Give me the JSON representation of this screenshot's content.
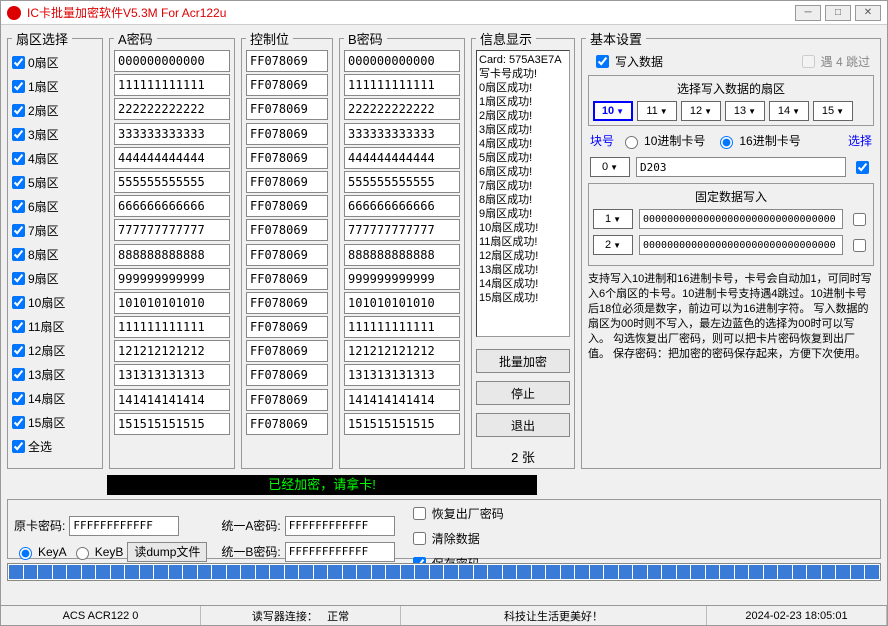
{
  "window": {
    "title": "IC卡批量加密软件V5.3M For Acr122u"
  },
  "headers": {
    "sector": "扇区选择",
    "akey": "A密码",
    "ctrl": "控制位",
    "bkey": "B密码",
    "info": "信息显示",
    "settings": "基本设置"
  },
  "sectors": [
    {
      "label": "0扇区",
      "a": "000000000000",
      "c": "FF078069",
      "b": "000000000000"
    },
    {
      "label": "1扇区",
      "a": "111111111111",
      "c": "FF078069",
      "b": "111111111111"
    },
    {
      "label": "2扇区",
      "a": "222222222222",
      "c": "FF078069",
      "b": "222222222222"
    },
    {
      "label": "3扇区",
      "a": "333333333333",
      "c": "FF078069",
      "b": "333333333333"
    },
    {
      "label": "4扇区",
      "a": "444444444444",
      "c": "FF078069",
      "b": "444444444444"
    },
    {
      "label": "5扇区",
      "a": "555555555555",
      "c": "FF078069",
      "b": "555555555555"
    },
    {
      "label": "6扇区",
      "a": "666666666666",
      "c": "FF078069",
      "b": "666666666666"
    },
    {
      "label": "7扇区",
      "a": "777777777777",
      "c": "FF078069",
      "b": "777777777777"
    },
    {
      "label": "8扇区",
      "a": "888888888888",
      "c": "FF078069",
      "b": "888888888888"
    },
    {
      "label": "9扇区",
      "a": "999999999999",
      "c": "FF078069",
      "b": "999999999999"
    },
    {
      "label": "10扇区",
      "a": "101010101010",
      "c": "FF078069",
      "b": "101010101010"
    },
    {
      "label": "11扇区",
      "a": "111111111111",
      "c": "FF078069",
      "b": "111111111111"
    },
    {
      "label": "12扇区",
      "a": "121212121212",
      "c": "FF078069",
      "b": "121212121212"
    },
    {
      "label": "13扇区",
      "a": "131313131313",
      "c": "FF078069",
      "b": "131313131313"
    },
    {
      "label": "14扇区",
      "a": "141414141414",
      "c": "FF078069",
      "b": "141414141414"
    },
    {
      "label": "15扇区",
      "a": "151515151515",
      "c": "FF078069",
      "b": "151515151515"
    }
  ],
  "select_all": "全选",
  "info_lines": [
    "Card: 575A3E7A",
    "写卡号成功!",
    "0扇区成功!",
    "1扇区成功!",
    "2扇区成功!",
    "3扇区成功!",
    "4扇区成功!",
    "5扇区成功!",
    "6扇区成功!",
    "7扇区成功!",
    "8扇区成功!",
    "9扇区成功!",
    "10扇区成功!",
    "11扇区成功!",
    "12扇区成功!",
    "13扇区成功!",
    "14扇区成功!",
    "15扇区成功!"
  ],
  "buttons": {
    "batch": "批量加密",
    "stop": "停止",
    "exit": "退出"
  },
  "count": "2 张",
  "settings": {
    "write_data": "写入数据",
    "skip4": "遇 4 跳过",
    "sector_title": "选择写入数据的扇区",
    "sector_opts": [
      "10",
      "11",
      "12",
      "13",
      "14",
      "15"
    ],
    "block_label": "块号",
    "radio_dec": "10进制卡号",
    "radio_hex": "16进制卡号",
    "select_btn": "选择",
    "block_val": "0",
    "card_val": "D203",
    "fixed_title": "固定数据写入",
    "fixed_rows": [
      {
        "idx": "1",
        "val": "00000000000000000000000000000000"
      },
      {
        "idx": "2",
        "val": "00000000000000000000000000000000"
      }
    ]
  },
  "help": "支持写入10进制和16进制卡号，卡号会自动加1，可同时写入6个扇区的卡号。10进制卡号支持遇4跳过。10进制卡号后18位必须是数字，前边可以为16进制字符。\n写入数据的扇区为00时则不写入，最左边蓝色的选择为00时可以写入。\n勾选恢复出厂密码，则可以把卡片密码恢复到出厂值。\n保存密码：把加密的密码保存起来，方便下次使用。",
  "blackbar": "已经加密，请拿卡!",
  "bottom": {
    "orig_label": "原卡密码:",
    "orig_val": "FFFFFFFFFFFF",
    "keya": "KeyA",
    "keyb": "KeyB",
    "read_dump": "读dump文件",
    "unify_a": "统一A密码:",
    "unify_a_val": "FFFFFFFFFFFF",
    "unify_b": "统一B密码:",
    "unify_b_val": "FFFFFFFFFFFF",
    "restore": "恢复出厂密码",
    "clear": "清除数据",
    "save": "保存密码"
  },
  "status": {
    "reader": "ACS ACR122 0",
    "conn": "读写器连接：",
    "normal": "正常",
    "slogan": "科技让生活更美好！",
    "time": "2024-02-23 18:05:01"
  }
}
